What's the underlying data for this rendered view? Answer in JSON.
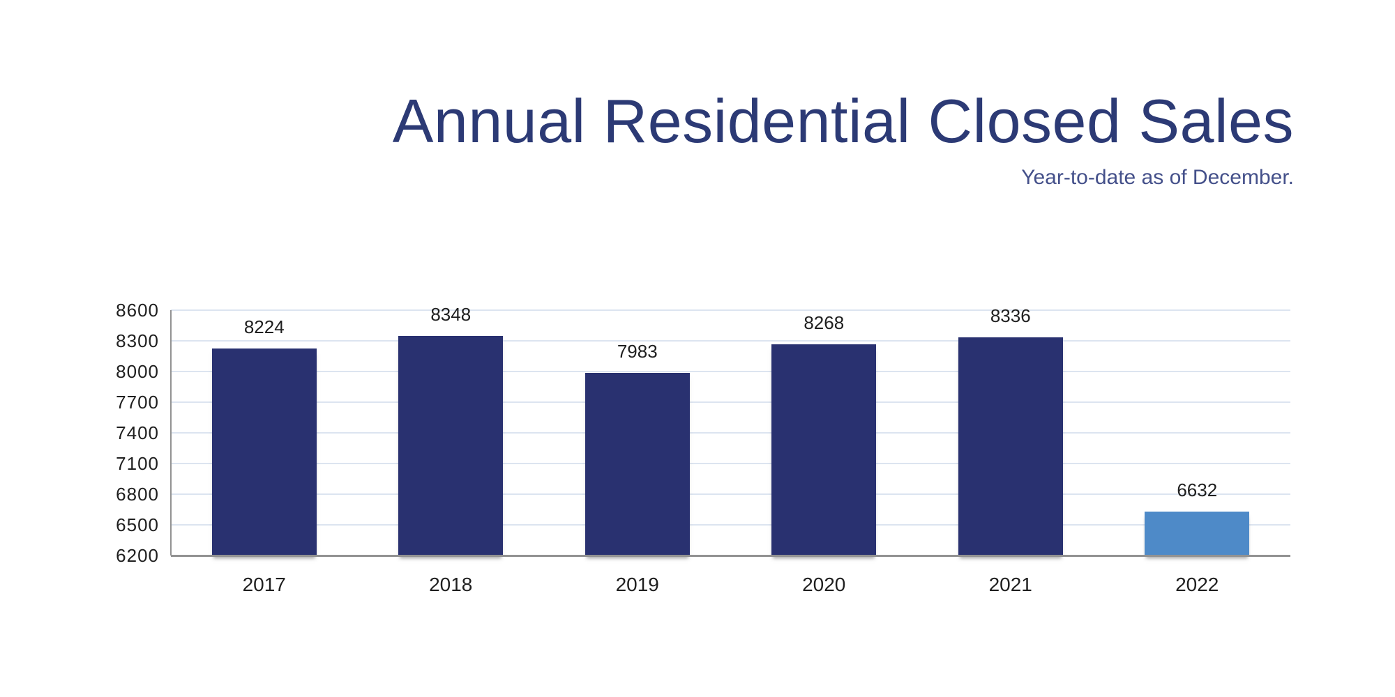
{
  "header": {
    "title": "Annual Residential Closed Sales",
    "subtitle": "Year-to-date as of December."
  },
  "colors": {
    "title": "#2c3a75",
    "subtitle": "#44508a",
    "bar_primary": "#293170",
    "bar_highlight": "#4e8ac8",
    "gridline": "#dce4f0",
    "axis": "#929292",
    "label": "#1f1f1f",
    "background": "#ffffff"
  },
  "chart_data": {
    "type": "bar",
    "title": "Annual Residential Closed Sales",
    "subtitle": "Year-to-date as of December.",
    "categories": [
      "2017",
      "2018",
      "2019",
      "2020",
      "2021",
      "2022"
    ],
    "values": [
      8224,
      8348,
      7983,
      8268,
      8336,
      6632
    ],
    "data_labels": [
      "8224",
      "8348",
      "7983",
      "8268",
      "8336",
      "6632"
    ],
    "bar_colors": [
      "#293170",
      "#293170",
      "#293170",
      "#293170",
      "#293170",
      "#4e8ac8"
    ],
    "ylim": [
      6200,
      8600
    ],
    "ytick_step": 300,
    "yticks": [
      6200,
      6500,
      6800,
      7100,
      7400,
      7700,
      8000,
      8300,
      8600
    ],
    "xlabel": "",
    "ylabel": "",
    "grid": true,
    "legend": false,
    "highlighted_category": "2022"
  }
}
